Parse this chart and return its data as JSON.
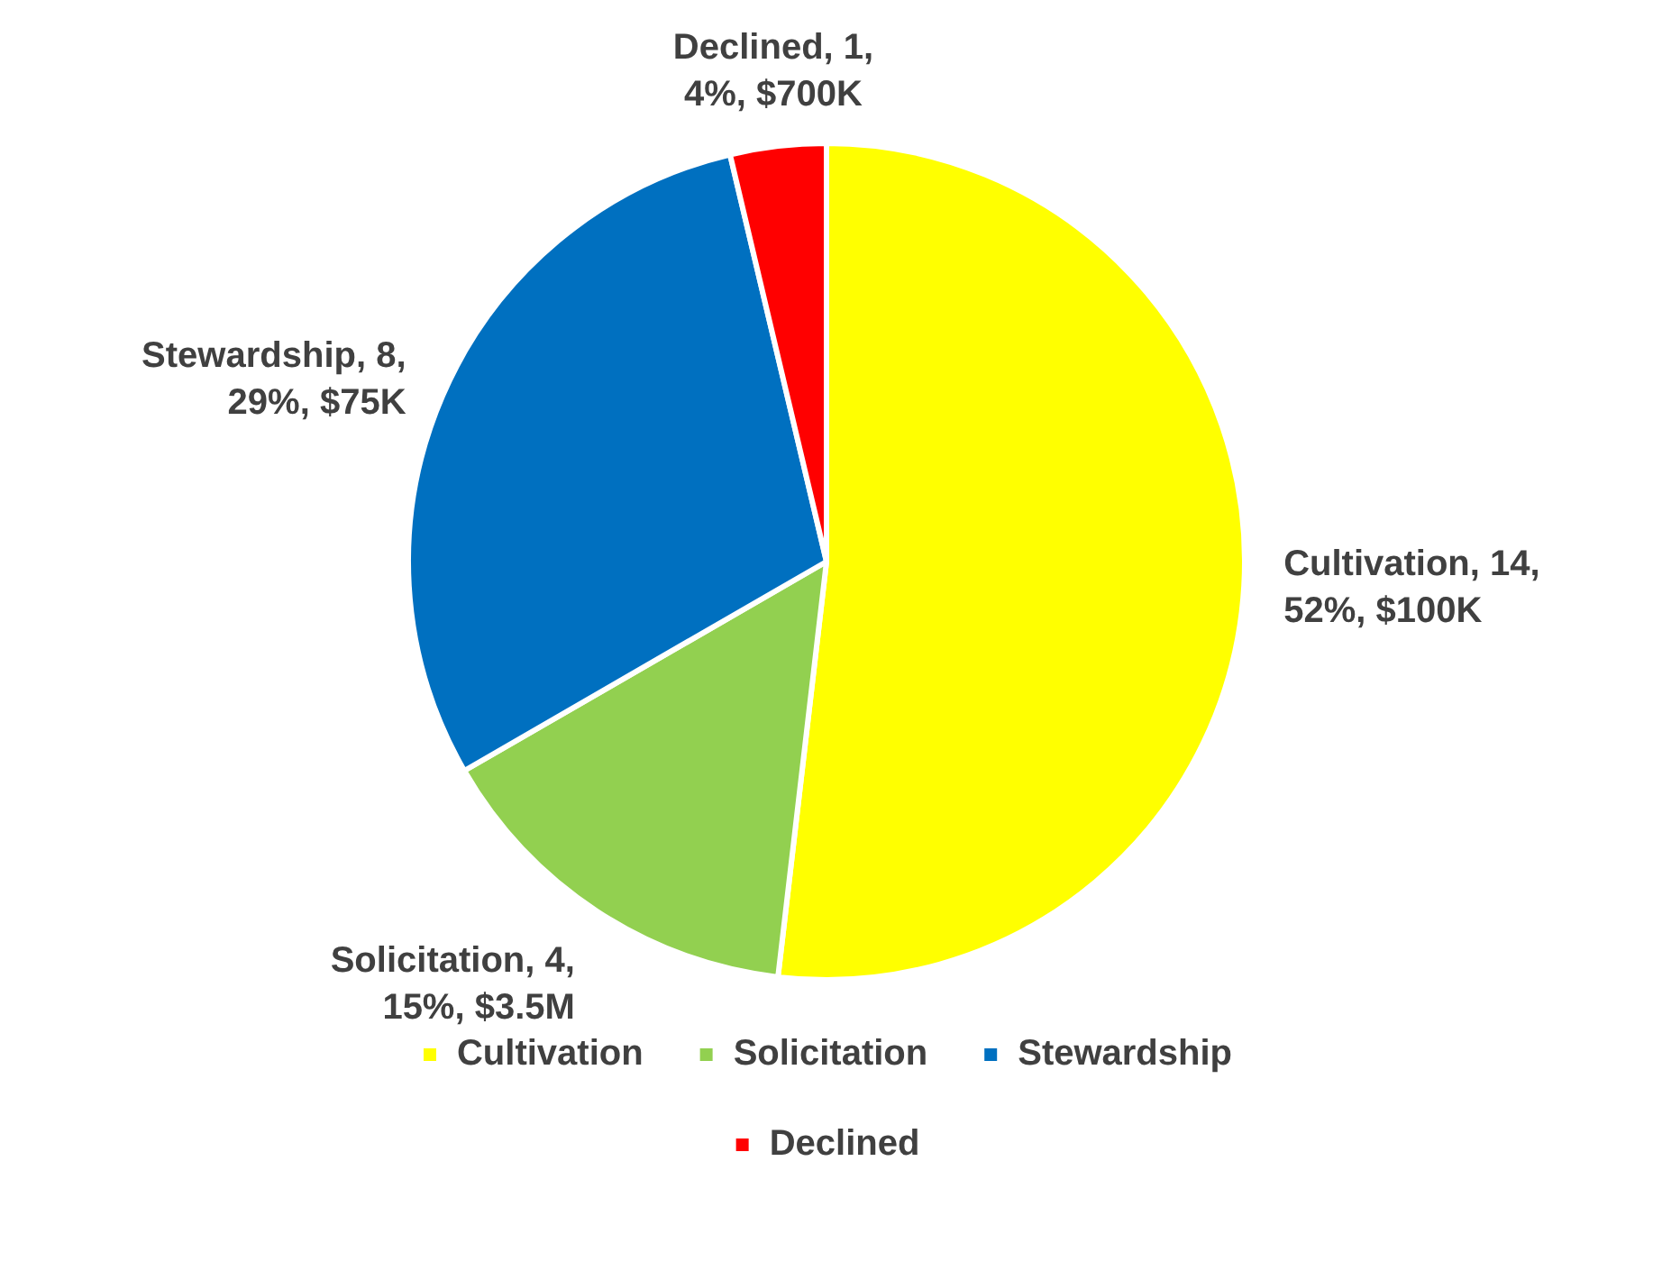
{
  "chart_data": {
    "type": "pie",
    "categories": [
      "Cultivation",
      "Solicitation",
      "Stewardship",
      "Declined"
    ],
    "values": [
      14,
      4,
      8,
      1
    ],
    "colors": [
      "#ffff00",
      "#92d050",
      "#0070c0",
      "#ff0000"
    ],
    "value_labels": [
      "Cultivation, 14, 52%, $100K",
      "Solicitation, 4, 15%, $3.5M",
      "Stewardship, 8, 29%, $75K",
      "Declined, 1, 4%, $700K"
    ],
    "legend": "bottom"
  }
}
